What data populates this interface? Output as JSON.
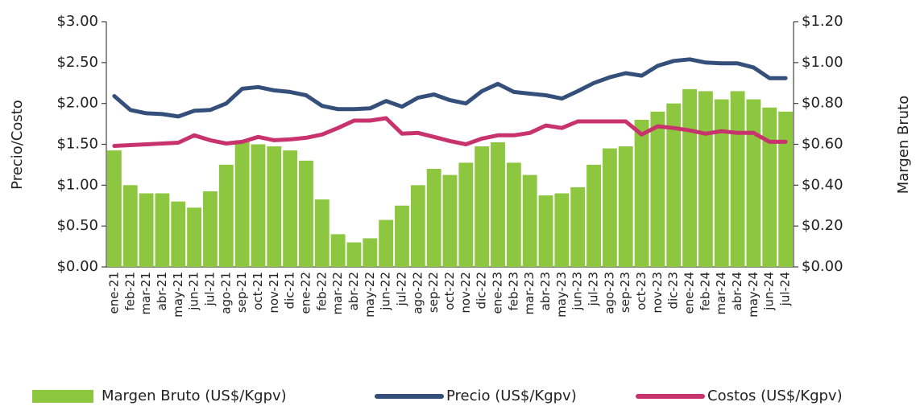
{
  "chart_data": {
    "type": "bar-line",
    "y_label": "Precio/Costo",
    "y2_label": "Margen Bruto",
    "categories": [
      "ene-21",
      "feb-21",
      "mar-21",
      "abr-21",
      "may-21",
      "jun-21",
      "jul-21",
      "ago-21",
      "sep-21",
      "oct-21",
      "nov-21",
      "dic-21",
      "ene-22",
      "feb-22",
      "mar-22",
      "abr-22",
      "may-22",
      "jun-22",
      "jul-22",
      "ago-22",
      "sep-22",
      "oct-22",
      "nov-22",
      "dic-22",
      "ene-23",
      "feb-23",
      "mar-23",
      "abr-23",
      "may-23",
      "jun-23",
      "jul-23",
      "ago-23",
      "sep-23",
      "oct-23",
      "nov-23",
      "dic-23",
      "ene-24",
      "feb-24",
      "mar-24",
      "abr-24",
      "may-24",
      "jun-24",
      "jul-24"
    ],
    "ylim": [
      0,
      3
    ],
    "yticks": [
      {
        "value": 0,
        "label": "$0.00"
      },
      {
        "value": 0.5,
        "label": "$0.50"
      },
      {
        "value": 1,
        "label": "$1.00"
      },
      {
        "value": 1.5,
        "label": "$1.50"
      },
      {
        "value": 2,
        "label": "$2.00"
      },
      {
        "value": 2.5,
        "label": "$2.50"
      },
      {
        "value": 3,
        "label": "$3.00"
      }
    ],
    "y2lim": [
      0,
      1.2
    ],
    "y2ticks": [
      {
        "value": 0,
        "label": "$0.00"
      },
      {
        "value": 0.2,
        "label": "$0.20"
      },
      {
        "value": 0.4,
        "label": "$0.40"
      },
      {
        "value": 0.6,
        "label": "$0.60"
      },
      {
        "value": 0.8,
        "label": "$0.80"
      },
      {
        "value": 1,
        "label": "$1.00"
      },
      {
        "value": 1.2,
        "label": "$1.20"
      }
    ],
    "series": [
      {
        "name": "Margen Bruto (US$/Kgpv)",
        "kind": "bar",
        "axis": "y2",
        "color": "#8dc63f",
        "values": [
          0.57,
          0.4,
          0.36,
          0.36,
          0.32,
          0.29,
          0.37,
          0.5,
          0.62,
          0.6,
          0.59,
          0.57,
          0.52,
          0.33,
          0.16,
          0.12,
          0.14,
          0.23,
          0.3,
          0.4,
          0.48,
          0.45,
          0.51,
          0.59,
          0.61,
          0.51,
          0.45,
          0.35,
          0.36,
          0.39,
          0.5,
          0.58,
          0.59,
          0.72,
          0.76,
          0.8,
          0.87,
          0.86,
          0.82,
          0.86,
          0.82,
          0.78,
          0.76
        ]
      },
      {
        "name": "Precio (US$/Kgpv)",
        "kind": "line",
        "color": "#34507a",
        "values": [
          2.09,
          1.92,
          1.88,
          1.87,
          1.84,
          1.91,
          1.92,
          2.0,
          2.18,
          2.2,
          2.16,
          2.14,
          2.1,
          1.97,
          1.93,
          1.93,
          1.94,
          2.03,
          1.96,
          2.07,
          2.11,
          2.04,
          2.0,
          2.15,
          2.24,
          2.14,
          2.12,
          2.1,
          2.06,
          2.15,
          2.25,
          2.32,
          2.37,
          2.34,
          2.46,
          2.52,
          2.54,
          2.5,
          2.49,
          2.49,
          2.44,
          2.31,
          2.31
        ]
      },
      {
        "name": "Costos (US$/Kgpv)",
        "kind": "line",
        "color": "#c8336e",
        "values": [
          1.48,
          1.49,
          1.5,
          1.51,
          1.52,
          1.61,
          1.55,
          1.51,
          1.53,
          1.59,
          1.55,
          1.56,
          1.58,
          1.62,
          1.7,
          1.79,
          1.79,
          1.82,
          1.63,
          1.64,
          1.59,
          1.54,
          1.5,
          1.57,
          1.61,
          1.61,
          1.64,
          1.73,
          1.7,
          1.78,
          1.78,
          1.78,
          1.78,
          1.62,
          1.72,
          1.7,
          1.67,
          1.63,
          1.66,
          1.64,
          1.64,
          1.53,
          1.53
        ]
      }
    ]
  }
}
